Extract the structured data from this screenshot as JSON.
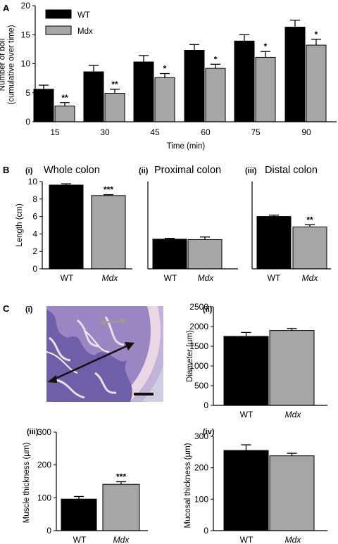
{
  "panel_letters": {
    "a": "A",
    "b": "B",
    "c": "C"
  },
  "sub_labels": {
    "b_i": "(i)",
    "b_ii": "(ii)",
    "b_iii": "(iii)",
    "c_i": "(i)",
    "c_ii": "(ii)",
    "c_iii": "(iii)",
    "c_iv": "(iv)"
  },
  "colors": {
    "wt": "#000000",
    "mdx": "#a6a6a6",
    "tissue": "#8a7fbf",
    "bg_tissue": "#c9c8de",
    "arrow_long": "#111111",
    "arrow_short": "#9a9a9a"
  },
  "micrograph": {
    "icon": "colon-cross-section-micrograph"
  },
  "chart_data": [
    {
      "id": "A",
      "type": "bar",
      "xlabel": "Time (min)",
      "ylabel_lines": [
        "Number of boli",
        "(cumulative over time)"
      ],
      "categories": [
        "15",
        "30",
        "45",
        "60",
        "75",
        "90"
      ],
      "ylim": [
        0,
        20
      ],
      "yticks": [
        "0",
        "5",
        "10",
        "15",
        "20"
      ],
      "legend": "top-left",
      "series": [
        {
          "name": "WT",
          "color": "#000000",
          "values": [
            5.6,
            8.6,
            10.3,
            12.3,
            13.9,
            16.3
          ],
          "errors": [
            0.7,
            1.1,
            1.1,
            1.0,
            1.1,
            1.2
          ]
        },
        {
          "name": "Mdx",
          "color": "#a6a6a6",
          "values": [
            2.7,
            4.9,
            7.6,
            9.2,
            11.1,
            13.2
          ],
          "errors": [
            0.6,
            0.7,
            0.7,
            0.7,
            1.0,
            1.0
          ]
        }
      ],
      "significance": [
        "**",
        "**",
        "*",
        "*",
        "*",
        "*"
      ]
    },
    {
      "id": "Bi",
      "type": "bar",
      "title": "Whole colon",
      "ylabel": "Length (cm)",
      "categories": [
        "WT",
        "Mdx"
      ],
      "ylim": [
        0,
        10
      ],
      "yticks": [
        "0",
        "2",
        "4",
        "6",
        "8",
        "10"
      ],
      "series": [
        {
          "values": [
            9.6,
            8.4
          ],
          "errors": [
            0.15,
            0.1
          ]
        }
      ],
      "significance": [
        "",
        "***"
      ]
    },
    {
      "id": "Bii",
      "type": "bar",
      "title": "Proximal colon",
      "categories": [
        "WT",
        "Mdx"
      ],
      "ylim": [
        0,
        10
      ],
      "series": [
        {
          "values": [
            3.4,
            3.35
          ],
          "errors": [
            0.1,
            0.3
          ]
        }
      ],
      "significance": [
        "",
        ""
      ]
    },
    {
      "id": "Biii",
      "type": "bar",
      "title": "Distal colon",
      "categories": [
        "WT",
        "Mdx"
      ],
      "ylim": [
        0,
        10
      ],
      "series": [
        {
          "values": [
            6.0,
            4.8
          ],
          "errors": [
            0.15,
            0.25
          ]
        }
      ],
      "significance": [
        "",
        "**"
      ]
    },
    {
      "id": "Cii",
      "type": "bar",
      "ylabel": "Diameter (µm)",
      "categories": [
        "WT",
        "Mdx"
      ],
      "ylim": [
        0,
        2500
      ],
      "yticks": [
        "0",
        "500",
        "1000",
        "1500",
        "2000",
        "2500"
      ],
      "series": [
        {
          "values": [
            1750,
            1900
          ],
          "errors": [
            100,
            50
          ]
        }
      ],
      "significance": [
        "",
        ""
      ]
    },
    {
      "id": "Ciii",
      "type": "bar",
      "ylabel": "Muscle thickness (µm)",
      "categories": [
        "WT",
        "Mdx"
      ],
      "ylim": [
        0,
        300
      ],
      "yticks": [
        "0",
        "100",
        "200",
        "300"
      ],
      "series": [
        {
          "values": [
            96,
            141
          ],
          "errors": [
            8,
            8
          ]
        }
      ],
      "significance": [
        "",
        "***"
      ]
    },
    {
      "id": "Civ",
      "type": "bar",
      "ylabel": "Mucosal thickness (µm)",
      "categories": [
        "WT",
        "Mdx"
      ],
      "ylim": [
        0,
        300
      ],
      "yticks": [
        "0",
        "100",
        "200",
        "300"
      ],
      "series": [
        {
          "values": [
            255,
            238
          ],
          "errors": [
            18,
            8
          ]
        }
      ],
      "significance": [
        "",
        ""
      ]
    }
  ]
}
